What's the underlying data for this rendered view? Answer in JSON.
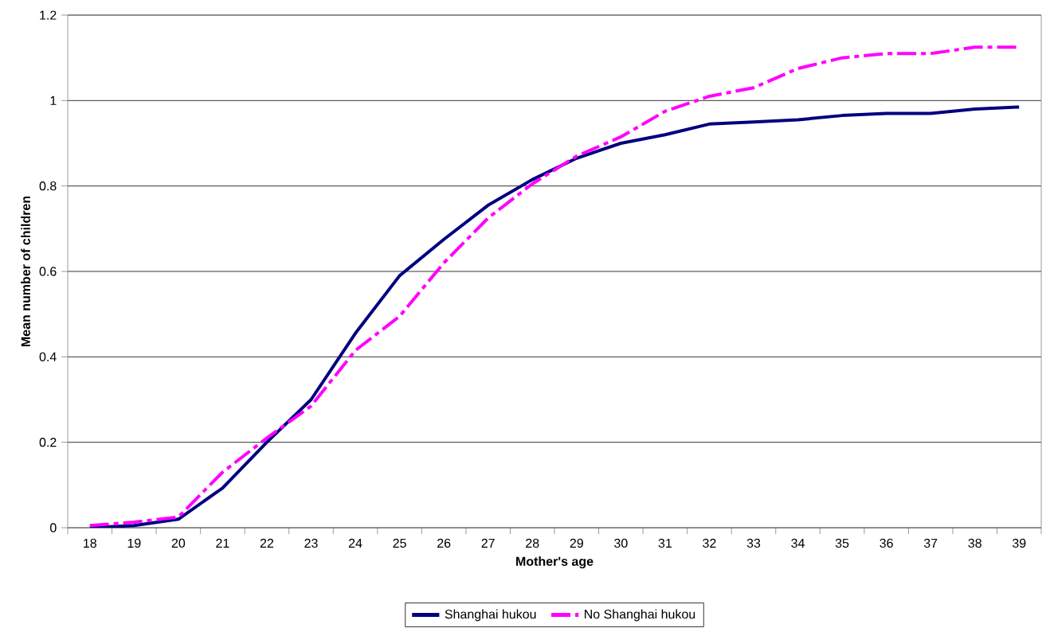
{
  "chart_data": {
    "type": "line",
    "xlabel": "Mother's age",
    "ylabel": "Mean number of children",
    "categories": [
      "18",
      "19",
      "20",
      "21",
      "22",
      "23",
      "24",
      "25",
      "26",
      "27",
      "28",
      "29",
      "30",
      "31",
      "32",
      "33",
      "34",
      "35",
      "36",
      "37",
      "38",
      "39"
    ],
    "series": [
      {
        "name": "Shanghai hukou",
        "color": "#000080",
        "line_style": "solid",
        "values": [
          0.0,
          0.005,
          0.02,
          0.093,
          0.2,
          0.3,
          0.455,
          0.59,
          0.675,
          0.755,
          0.815,
          0.865,
          0.9,
          0.92,
          0.945,
          0.95,
          0.955,
          0.965,
          0.97,
          0.97,
          0.98,
          0.985
        ]
      },
      {
        "name": "No Shanghai hukou",
        "color": "#ff00ff",
        "line_style": "dashed",
        "values": [
          0.005,
          0.013,
          0.025,
          0.13,
          0.21,
          0.285,
          0.415,
          0.495,
          0.62,
          0.725,
          0.805,
          0.87,
          0.915,
          0.975,
          1.01,
          1.03,
          1.075,
          1.1,
          1.11,
          1.11,
          1.125,
          1.125
        ]
      }
    ],
    "ylim": [
      0,
      1.2
    ],
    "yticks": [
      0,
      0.2,
      0.4,
      0.6,
      0.8,
      1,
      1.2
    ],
    "grid": "y",
    "legend": "bottom",
    "marker": "none"
  }
}
